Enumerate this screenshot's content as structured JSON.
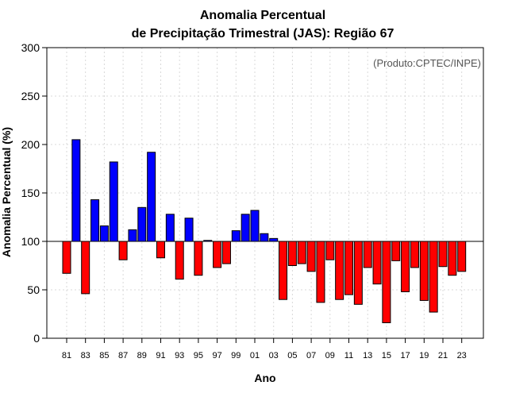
{
  "chart_data": {
    "type": "bar",
    "title_line1": "Anomalia Percentual",
    "title_line2": "de Precipitação Trimestral (JAS): Região 67",
    "xlabel": "Ano",
    "ylabel": "Anomalia Percentual (%)",
    "credit": "(Produto:CPTEC/INPE)",
    "baseline": 100,
    "ylim": [
      0,
      300
    ],
    "yticks": [
      "0",
      "50",
      "100",
      "150",
      "200",
      "250",
      "300"
    ],
    "categories": [
      "81",
      "82",
      "83",
      "84",
      "85",
      "86",
      "87",
      "88",
      "89",
      "90",
      "91",
      "92",
      "93",
      "94",
      "95",
      "96",
      "97",
      "98",
      "99",
      "00",
      "01",
      "02",
      "03",
      "04",
      "05",
      "06",
      "07",
      "08",
      "09",
      "10",
      "11",
      "12",
      "13",
      "14",
      "15",
      "16",
      "17",
      "18",
      "19",
      "20",
      "21",
      "22",
      "23"
    ],
    "values": [
      67,
      205,
      46,
      143,
      116,
      182,
      81,
      112,
      135,
      192,
      83,
      128,
      61,
      124,
      65,
      101,
      73,
      77,
      111,
      128,
      132,
      108,
      103,
      40,
      75,
      77,
      69,
      37,
      81,
      40,
      45,
      35,
      73,
      56,
      16,
      80,
      48,
      73,
      39,
      27,
      74,
      65,
      69
    ],
    "xtick_labels": [
      "81",
      "83",
      "85",
      "87",
      "89",
      "91",
      "93",
      "95",
      "97",
      "99",
      "01",
      "03",
      "05",
      "07",
      "09",
      "11",
      "13",
      "15",
      "17",
      "19",
      "21",
      "23"
    ],
    "colors": {
      "above": "#0000ff",
      "below": "#ff0000",
      "outline": "#000000",
      "grid": "#d9d9d9"
    },
    "grid": true
  }
}
